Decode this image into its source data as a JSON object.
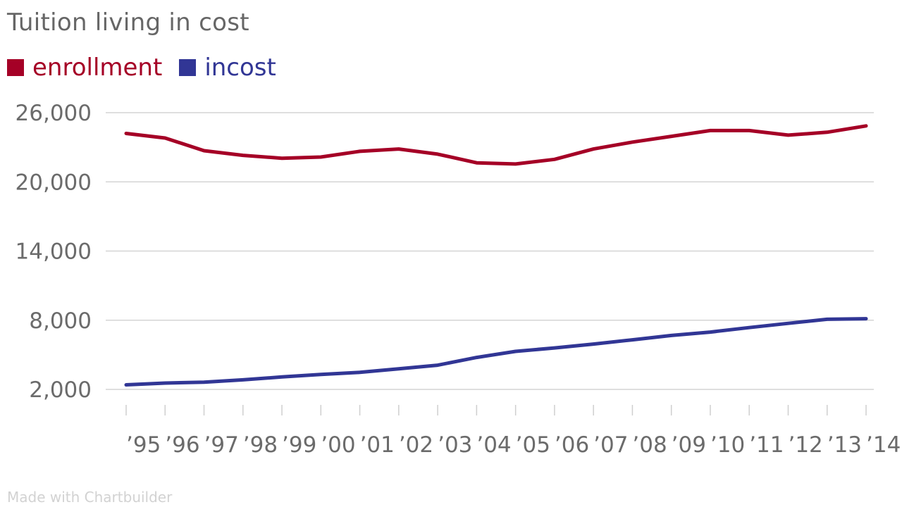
{
  "footer": "Made with Chartbuilder",
  "chart_data": {
    "type": "line",
    "title": "Tuition living in cost",
    "xlabel": "",
    "ylabel": "",
    "categories": [
      "’95",
      "’96",
      "’97",
      "’98",
      "’99",
      "’00",
      "’01",
      "’02",
      "’03",
      "’04",
      "’05",
      "’06",
      "’07",
      "’08",
      "’09",
      "’10",
      "’11",
      "’12",
      "’13",
      "’14"
    ],
    "yticks": [
      2000,
      8000,
      14000,
      20000,
      26000
    ],
    "ytick_labels": [
      "2,000",
      "8,000",
      "14,000",
      "20,000",
      "26,000"
    ],
    "ylim": [
      2000,
      26000
    ],
    "grid": true,
    "legend_position": "top-left",
    "series": [
      {
        "name": "enrollment",
        "color": "#a50026",
        "values": [
          24200,
          23800,
          22700,
          22300,
          22050,
          22150,
          22650,
          22850,
          22400,
          21650,
          21550,
          21950,
          22850,
          23450,
          23950,
          24450,
          24450,
          24050,
          24300,
          24850
        ]
      },
      {
        "name": "incost",
        "color": "#313695",
        "values": [
          2400,
          2550,
          2630,
          2830,
          3080,
          3300,
          3480,
          3790,
          4100,
          4770,
          5300,
          5600,
          5930,
          6300,
          6680,
          6970,
          7360,
          7730,
          8080,
          8130
        ]
      }
    ]
  }
}
